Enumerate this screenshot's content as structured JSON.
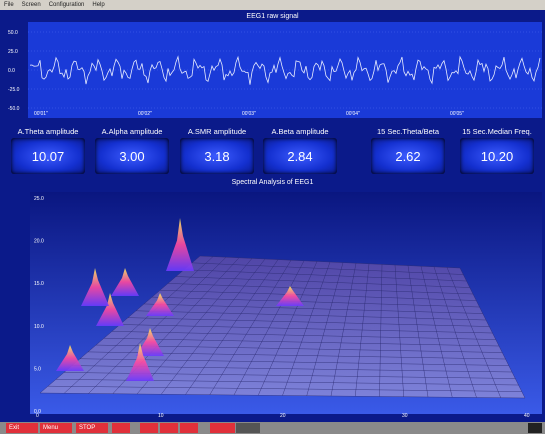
{
  "menu": [
    "File",
    "Screen",
    "Configuration",
    "Help"
  ],
  "raw_signal": {
    "title": "EEG1 raw signal",
    "yticks": [
      "50.0",
      "25.0",
      "0.0",
      "-25.0",
      "-50.0"
    ],
    "xticks": [
      "00'01\"",
      "00'02\"",
      "00'03\"",
      "00'04\"",
      "00'05\""
    ]
  },
  "metrics": [
    {
      "label": "A.Theta amplitude",
      "value": "10.07"
    },
    {
      "label": "A.Alpha amplitude",
      "value": "3.00"
    },
    {
      "label": "A.SMR amplitude",
      "value": "3.18"
    },
    {
      "label": "A.Beta amplitude",
      "value": "2.84"
    },
    {
      "label": "15 Sec.Theta/Beta",
      "value": "2.62"
    },
    {
      "label": "15 Sec.Median Freq.",
      "value": "10.20"
    }
  ],
  "spectral": {
    "title": "Spectral Analysis of EEG1",
    "yticks": [
      "25.0",
      "20.0",
      "15.0",
      "10.0",
      "5.0",
      "0.0"
    ],
    "xticks": [
      "0",
      "10",
      "20",
      "30",
      "40"
    ]
  },
  "toolbar": [
    "Exit",
    "Menu",
    "STOP"
  ]
}
